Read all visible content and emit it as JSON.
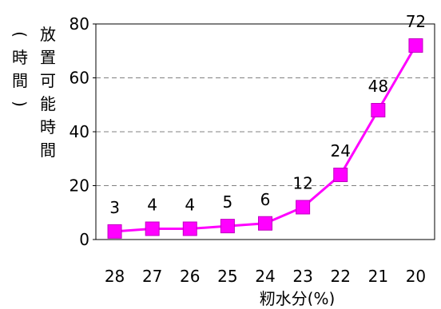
{
  "chart_data": {
    "type": "line",
    "x_categories": [
      "28",
      "27",
      "26",
      "25",
      "24",
      "23",
      "22",
      "21",
      "20"
    ],
    "series": [
      {
        "values": [
          3,
          4,
          4,
          5,
          6,
          12,
          24,
          48,
          72
        ],
        "color": "#ff00ff",
        "marker": "square"
      }
    ],
    "data_labels": [
      "3",
      "4",
      "4",
      "5",
      "6",
      "12",
      "24",
      "48",
      "72"
    ],
    "xlabel": "籾水分(%)",
    "ylabel": "放置可能時間(時間)",
    "ylabel_main": "放置可能時間",
    "ylabel_unit": "(時間)",
    "ylim": [
      0,
      80
    ],
    "yticks": [
      0,
      20,
      40,
      60,
      80
    ],
    "grid": "horizontal dashed",
    "grid_color": "#808080",
    "line_color": "#ff00ff",
    "axis_color": "#000000"
  }
}
